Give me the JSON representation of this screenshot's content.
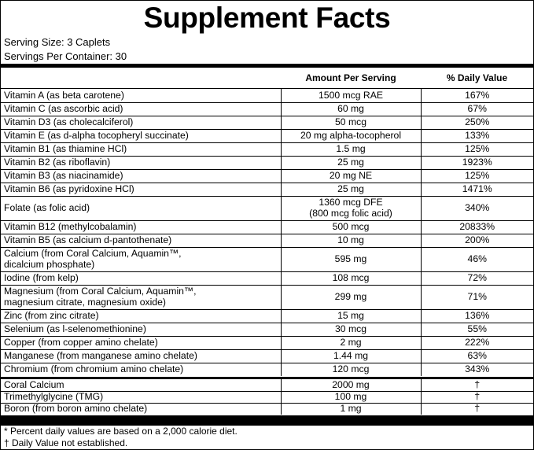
{
  "title": "Supplement Facts",
  "serving_size": "Serving Size: 3 Caplets",
  "servings_per_container": "Servings Per Container: 30",
  "columns": {
    "amount": "Amount Per Serving",
    "daily_value": "% Daily Value"
  },
  "vitamins_minerals": [
    {
      "name": "Vitamin A (as beta carotene)",
      "amount": "1500 mcg RAE",
      "dv": "167%"
    },
    {
      "name": "Vitamin C (as ascorbic acid)",
      "amount": "60 mg",
      "dv": "67%"
    },
    {
      "name": "Vitamin D3 (as cholecalciferol)",
      "amount": "50 mcg",
      "dv": "250%"
    },
    {
      "name": "Vitamin E (as d-alpha tocopheryl succinate)",
      "amount": "20 mg alpha-tocopherol",
      "dv": "133%"
    },
    {
      "name": "Vitamin B1 (as thiamine HCl)",
      "amount": "1.5 mg",
      "dv": "125%"
    },
    {
      "name": "Vitamin B2 (as riboflavin)",
      "amount": "25 mg",
      "dv": "1923%"
    },
    {
      "name": "Vitamin B3 (as niacinamide)",
      "amount": "20 mg NE",
      "dv": "125%"
    },
    {
      "name": "Vitamin B6 (as pyridoxine HCl)",
      "amount": "25 mg",
      "dv": "1471%"
    },
    {
      "name": "Folate (as folic acid)",
      "amount": "1360 mcg DFE",
      "amount2": "(800 mcg folic acid)",
      "dv": "340%"
    },
    {
      "name": "Vitamin B12 (methylcobalamin)",
      "amount": "500 mcg",
      "dv": "20833%"
    },
    {
      "name": "Vitamin B5 (as calcium d-pantothenate)",
      "amount": "10 mg",
      "dv": "200%"
    },
    {
      "name": "Calcium (from Coral Calcium, Aquamin™,",
      "name2": "dicalcium phosphate)",
      "amount": "595 mg",
      "dv": "46%"
    },
    {
      "name": "Iodine (from kelp)",
      "amount": "108 mcg",
      "dv": "72%"
    },
    {
      "name": "Magnesium (from Coral Calcium, Aquamin™,",
      "name2": "magnesium citrate, magnesium oxide)",
      "amount": "299 mg",
      "dv": "71%"
    },
    {
      "name": "Zinc (from zinc citrate)",
      "amount": "15 mg",
      "dv": "136%"
    },
    {
      "name": "Selenium (as l-selenomethionine)",
      "amount": "30 mcg",
      "dv": "55%"
    },
    {
      "name": "Copper (from copper amino chelate)",
      "amount": "2 mg",
      "dv": "222%"
    },
    {
      "name": "Manganese (from manganese amino chelate)",
      "amount": "1.44 mg",
      "dv": "63%"
    },
    {
      "name": "Chromium (from chromium amino chelate)",
      "amount": "120 mcg",
      "dv": "343%"
    }
  ],
  "other_ingredients": [
    {
      "name": "Coral Calcium",
      "amount": "2000 mg",
      "dv": "†"
    },
    {
      "name": "Trimethylglycine (TMG)",
      "amount": "100 mg",
      "dv": "†"
    },
    {
      "name": "Boron (from boron amino chelate)",
      "amount": "1 mg",
      "dv": "†"
    }
  ],
  "footnotes": {
    "percent_note": "* Percent daily values are based on a 2,000 calorie diet.",
    "dagger_note": "† Daily Value not established."
  }
}
